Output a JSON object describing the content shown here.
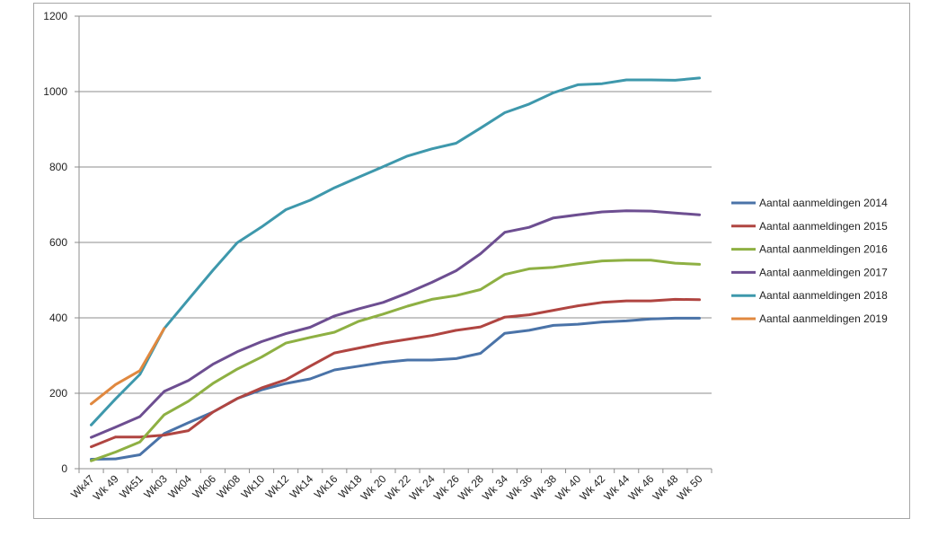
{
  "chart_data": {
    "type": "line",
    "title": "",
    "xlabel": "",
    "ylabel": "",
    "ylim": [
      0,
      1200
    ],
    "yticks": [
      0,
      200,
      400,
      600,
      800,
      1000,
      1200
    ],
    "grid": true,
    "legend_position": "right",
    "categories": [
      "Wk47",
      "Wk 49",
      "Wk51",
      "Wk03",
      "Wk04",
      "Wk06",
      "Wk08",
      "Wk10",
      "Wk12",
      "Wk14",
      "Wk16",
      "Wk18",
      "Wk 20",
      "Wk 22",
      "Wk 24",
      "Wk 26",
      "Wk 28",
      "Wk 34",
      "Wk 36",
      "Wk 38",
      "Wk 40",
      "Wk 42",
      "Wk 44",
      "Wk 46",
      "Wk 48",
      "Wk 50"
    ],
    "series": [
      {
        "name": "Aantal aanmeldingen 2014",
        "color": "#4a73a8",
        "values": [
          25,
          26,
          37,
          93,
          122,
          150,
          186,
          209,
          226,
          238,
          262,
          272,
          282,
          288,
          288,
          292,
          306,
          359,
          367,
          380,
          383,
          389,
          392,
          397,
          399,
          399
        ]
      },
      {
        "name": "Aantal aanmeldingen 2015",
        "color": "#b04541",
        "values": [
          58,
          84,
          84,
          89,
          101,
          150,
          186,
          214,
          236,
          272,
          307,
          320,
          333,
          343,
          353,
          367,
          376,
          402,
          408,
          420,
          432,
          441,
          445,
          445,
          449,
          448
        ]
      },
      {
        "name": "Aantal aanmeldingen 2016",
        "color": "#8eb043",
        "values": [
          21,
          44,
          71,
          143,
          179,
          226,
          264,
          296,
          333,
          348,
          362,
          391,
          410,
          431,
          449,
          459,
          475,
          515,
          530,
          534,
          543,
          551,
          553,
          553,
          545,
          542
        ]
      },
      {
        "name": "Aantal aanmeldingen 2017",
        "color": "#6d4e91",
        "values": [
          83,
          110,
          138,
          205,
          234,
          277,
          310,
          337,
          358,
          375,
          405,
          424,
          441,
          466,
          494,
          525,
          570,
          627,
          640,
          665,
          673,
          681,
          684,
          683,
          678,
          673
        ]
      },
      {
        "name": "Aantal aanmeldingen 2018",
        "color": "#3e98ac",
        "values": [
          116,
          185,
          250,
          372,
          449,
          526,
          599,
          641,
          687,
          712,
          745,
          773,
          801,
          829,
          848,
          863,
          903,
          944,
          967,
          997,
          1018,
          1021,
          1031,
          1031,
          1030,
          1036
        ]
      },
      {
        "name": "Aantal aanmeldingen 2019",
        "color": "#e0883f",
        "values": [
          172,
          223,
          260,
          372,
          null,
          null,
          null,
          null,
          null,
          null,
          null,
          null,
          null,
          null,
          null,
          null,
          null,
          null,
          null,
          null,
          null,
          null,
          null,
          null,
          null,
          null
        ]
      }
    ]
  }
}
